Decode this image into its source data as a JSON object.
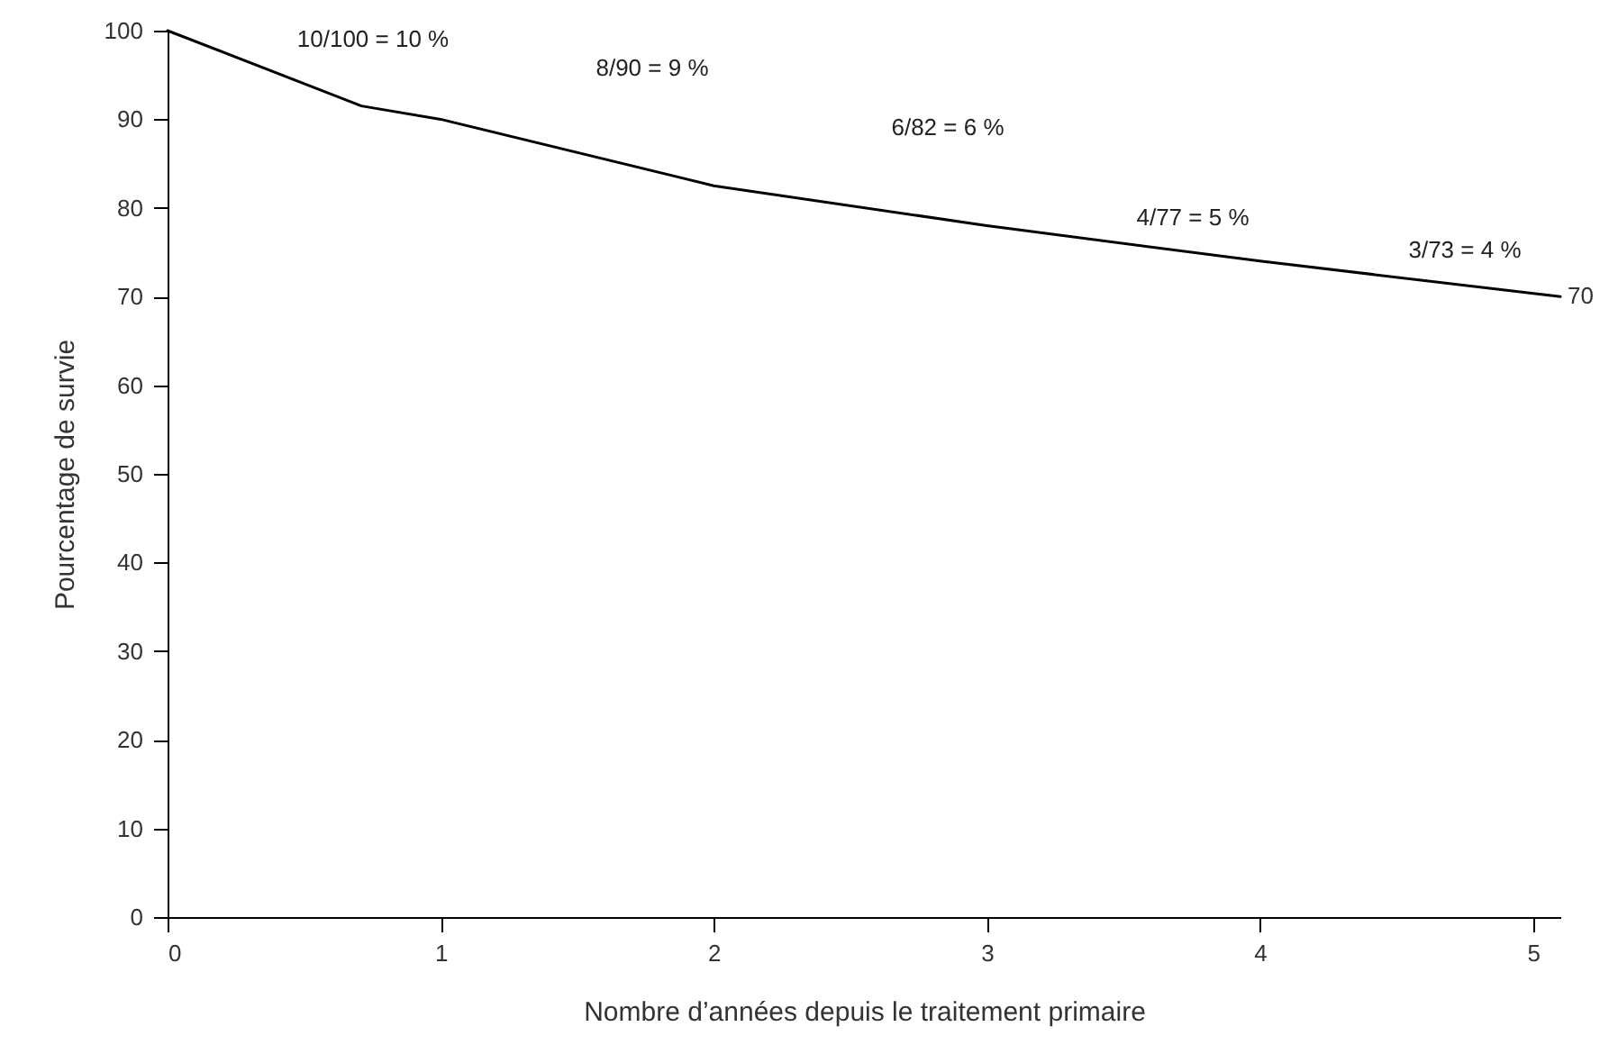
{
  "chart_data": {
    "type": "line",
    "xlabel": "Nombre d’années depuis le traitement primaire",
    "ylabel": "Pourcentage de survie",
    "x": [
      0,
      0.71,
      1,
      2,
      3,
      4,
      5.1
    ],
    "series": [
      {
        "color": "#000000",
        "values": [
          100,
          91.5,
          90,
          82.5,
          78,
          74,
          70
        ],
        "value_labels": [
          null,
          null,
          null,
          null,
          null,
          null,
          "70"
        ]
      }
    ],
    "xlim": [
      0,
      5.1
    ],
    "xticks": [
      0,
      1,
      2,
      3,
      4,
      5
    ],
    "ylim": [
      0,
      100
    ],
    "yticks": [
      0,
      10,
      20,
      30,
      40,
      50,
      60,
      70,
      80,
      90,
      100
    ],
    "grid": false,
    "marker": "none",
    "line_style": "solid",
    "annotations": [
      "10/100 = 10 %",
      "8/90 = 9 %",
      "6/82 = 6 %",
      "4/77 = 5 %",
      "3/73 = 4 %"
    ]
  }
}
